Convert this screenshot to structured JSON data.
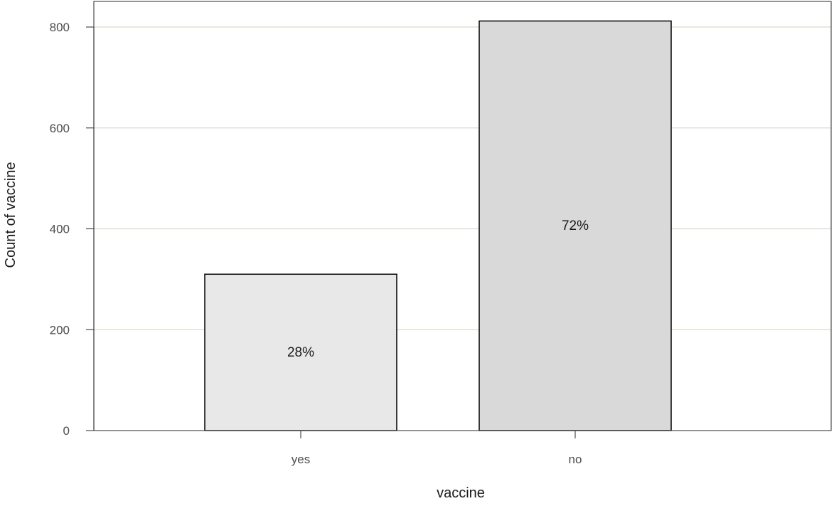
{
  "chart_data": {
    "type": "bar",
    "categories": [
      "yes",
      "no"
    ],
    "values": [
      310,
      812
    ],
    "data_labels": [
      "28%",
      "72%"
    ],
    "bar_colors": [
      "#e8e8e8",
      "#d9d9d9"
    ],
    "bar_stroke": "#000000",
    "gridline_color": "#d9dccb",
    "frame_color": "#4d4d4d",
    "title": "",
    "xlabel": "vaccine",
    "ylabel": "Count of vaccine",
    "ylim": [
      0,
      850
    ],
    "yticks": [
      0,
      200,
      400,
      600,
      800
    ],
    "ytick_labels": [
      "0",
      "200",
      "400",
      "600",
      "800"
    ],
    "grid": true,
    "legend": "none"
  }
}
